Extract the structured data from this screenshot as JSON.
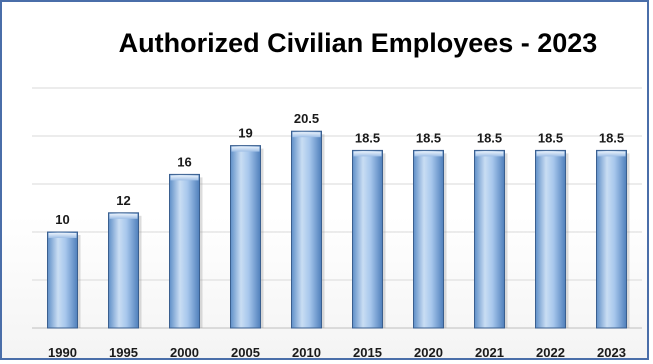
{
  "chart_data": {
    "type": "bar",
    "title": "Authorized Civilian Employees - 2023",
    "categories": [
      "1990",
      "1995",
      "2000",
      "2005",
      "2010",
      "2015",
      "2020",
      "2021",
      "2022",
      "2023"
    ],
    "values": [
      10,
      12,
      16,
      19,
      20.5,
      18.5,
      18.5,
      18.5,
      18.5,
      18.5
    ],
    "value_labels": [
      "10",
      "12",
      "16",
      "19",
      "20.5",
      "18.5",
      "18.5",
      "18.5",
      "18.5",
      "18.5"
    ],
    "xlabel": "",
    "ylabel": "",
    "ylim": [
      0,
      25
    ],
    "grid": true,
    "legend": "none",
    "colors": {
      "bar_light": "#d8e8f8",
      "bar_mid": "#a7c7ec",
      "bar_dark": "#5f8fc8",
      "bar_edge": "#3a5f8f",
      "grid": "#d9d9d9",
      "frame": "#4a6ea9"
    }
  }
}
